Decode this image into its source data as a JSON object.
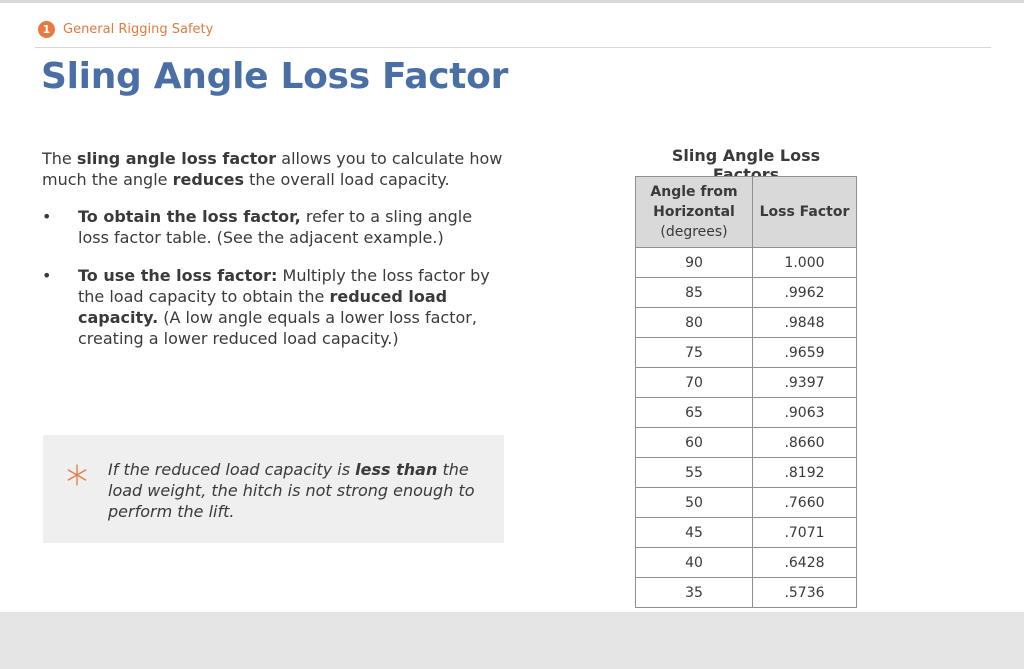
{
  "header": {
    "module_number": "1",
    "module_name": "General Rigging Safety",
    "page_title": "Sling Angle Loss Factor"
  },
  "intro": {
    "t1": "The ",
    "b1": "sling angle loss factor",
    "t2": " allows you to calculate how much the angle ",
    "b2": "reduces",
    "t3": " the overall load capacity."
  },
  "bullets": [
    {
      "marker": "•",
      "b1": "To obtain the loss factor,",
      "t1": " refer to a sling angle loss factor table. (See the adjacent example.)"
    },
    {
      "marker": "•",
      "b1": "To use the loss factor:",
      "t1": " Multiply the loss factor by the load capacity to obtain the ",
      "b2": "reduced load capacity.",
      "t2": " (A low angle equals a lower loss factor, creating a lower reduced load capacity.)"
    }
  ],
  "note": {
    "icon": "asterisk-icon",
    "t1": "If the reduced load capacity is ",
    "b1": "less than",
    "t2": " the load weight, the hitch is not strong enough to perform the lift."
  },
  "table": {
    "title": "Sling Angle Loss Factors",
    "header_col1_line1": "Angle from",
    "header_col1_line2": "Horizontal",
    "header_col1_line3": "(degrees)",
    "header_col2": "Loss Factor",
    "rows": [
      {
        "angle": "90",
        "factor": "1.000"
      },
      {
        "angle": "85",
        "factor": ".9962"
      },
      {
        "angle": "80",
        "factor": ".9848"
      },
      {
        "angle": "75",
        "factor": ".9659"
      },
      {
        "angle": "70",
        "factor": ".9397"
      },
      {
        "angle": "65",
        "factor": ".9063"
      },
      {
        "angle": "60",
        "factor": ".8660"
      },
      {
        "angle": "55",
        "factor": ".8192"
      },
      {
        "angle": "50",
        "factor": ".7660"
      },
      {
        "angle": "45",
        "factor": ".7071"
      },
      {
        "angle": "40",
        "factor": ".6428"
      },
      {
        "angle": "35",
        "factor": ".5736"
      }
    ]
  },
  "colors": {
    "title": "#4a6fa5",
    "accent": "#e8793f",
    "note_bg": "#efefef",
    "table_header_bg": "#d9d9d9"
  }
}
